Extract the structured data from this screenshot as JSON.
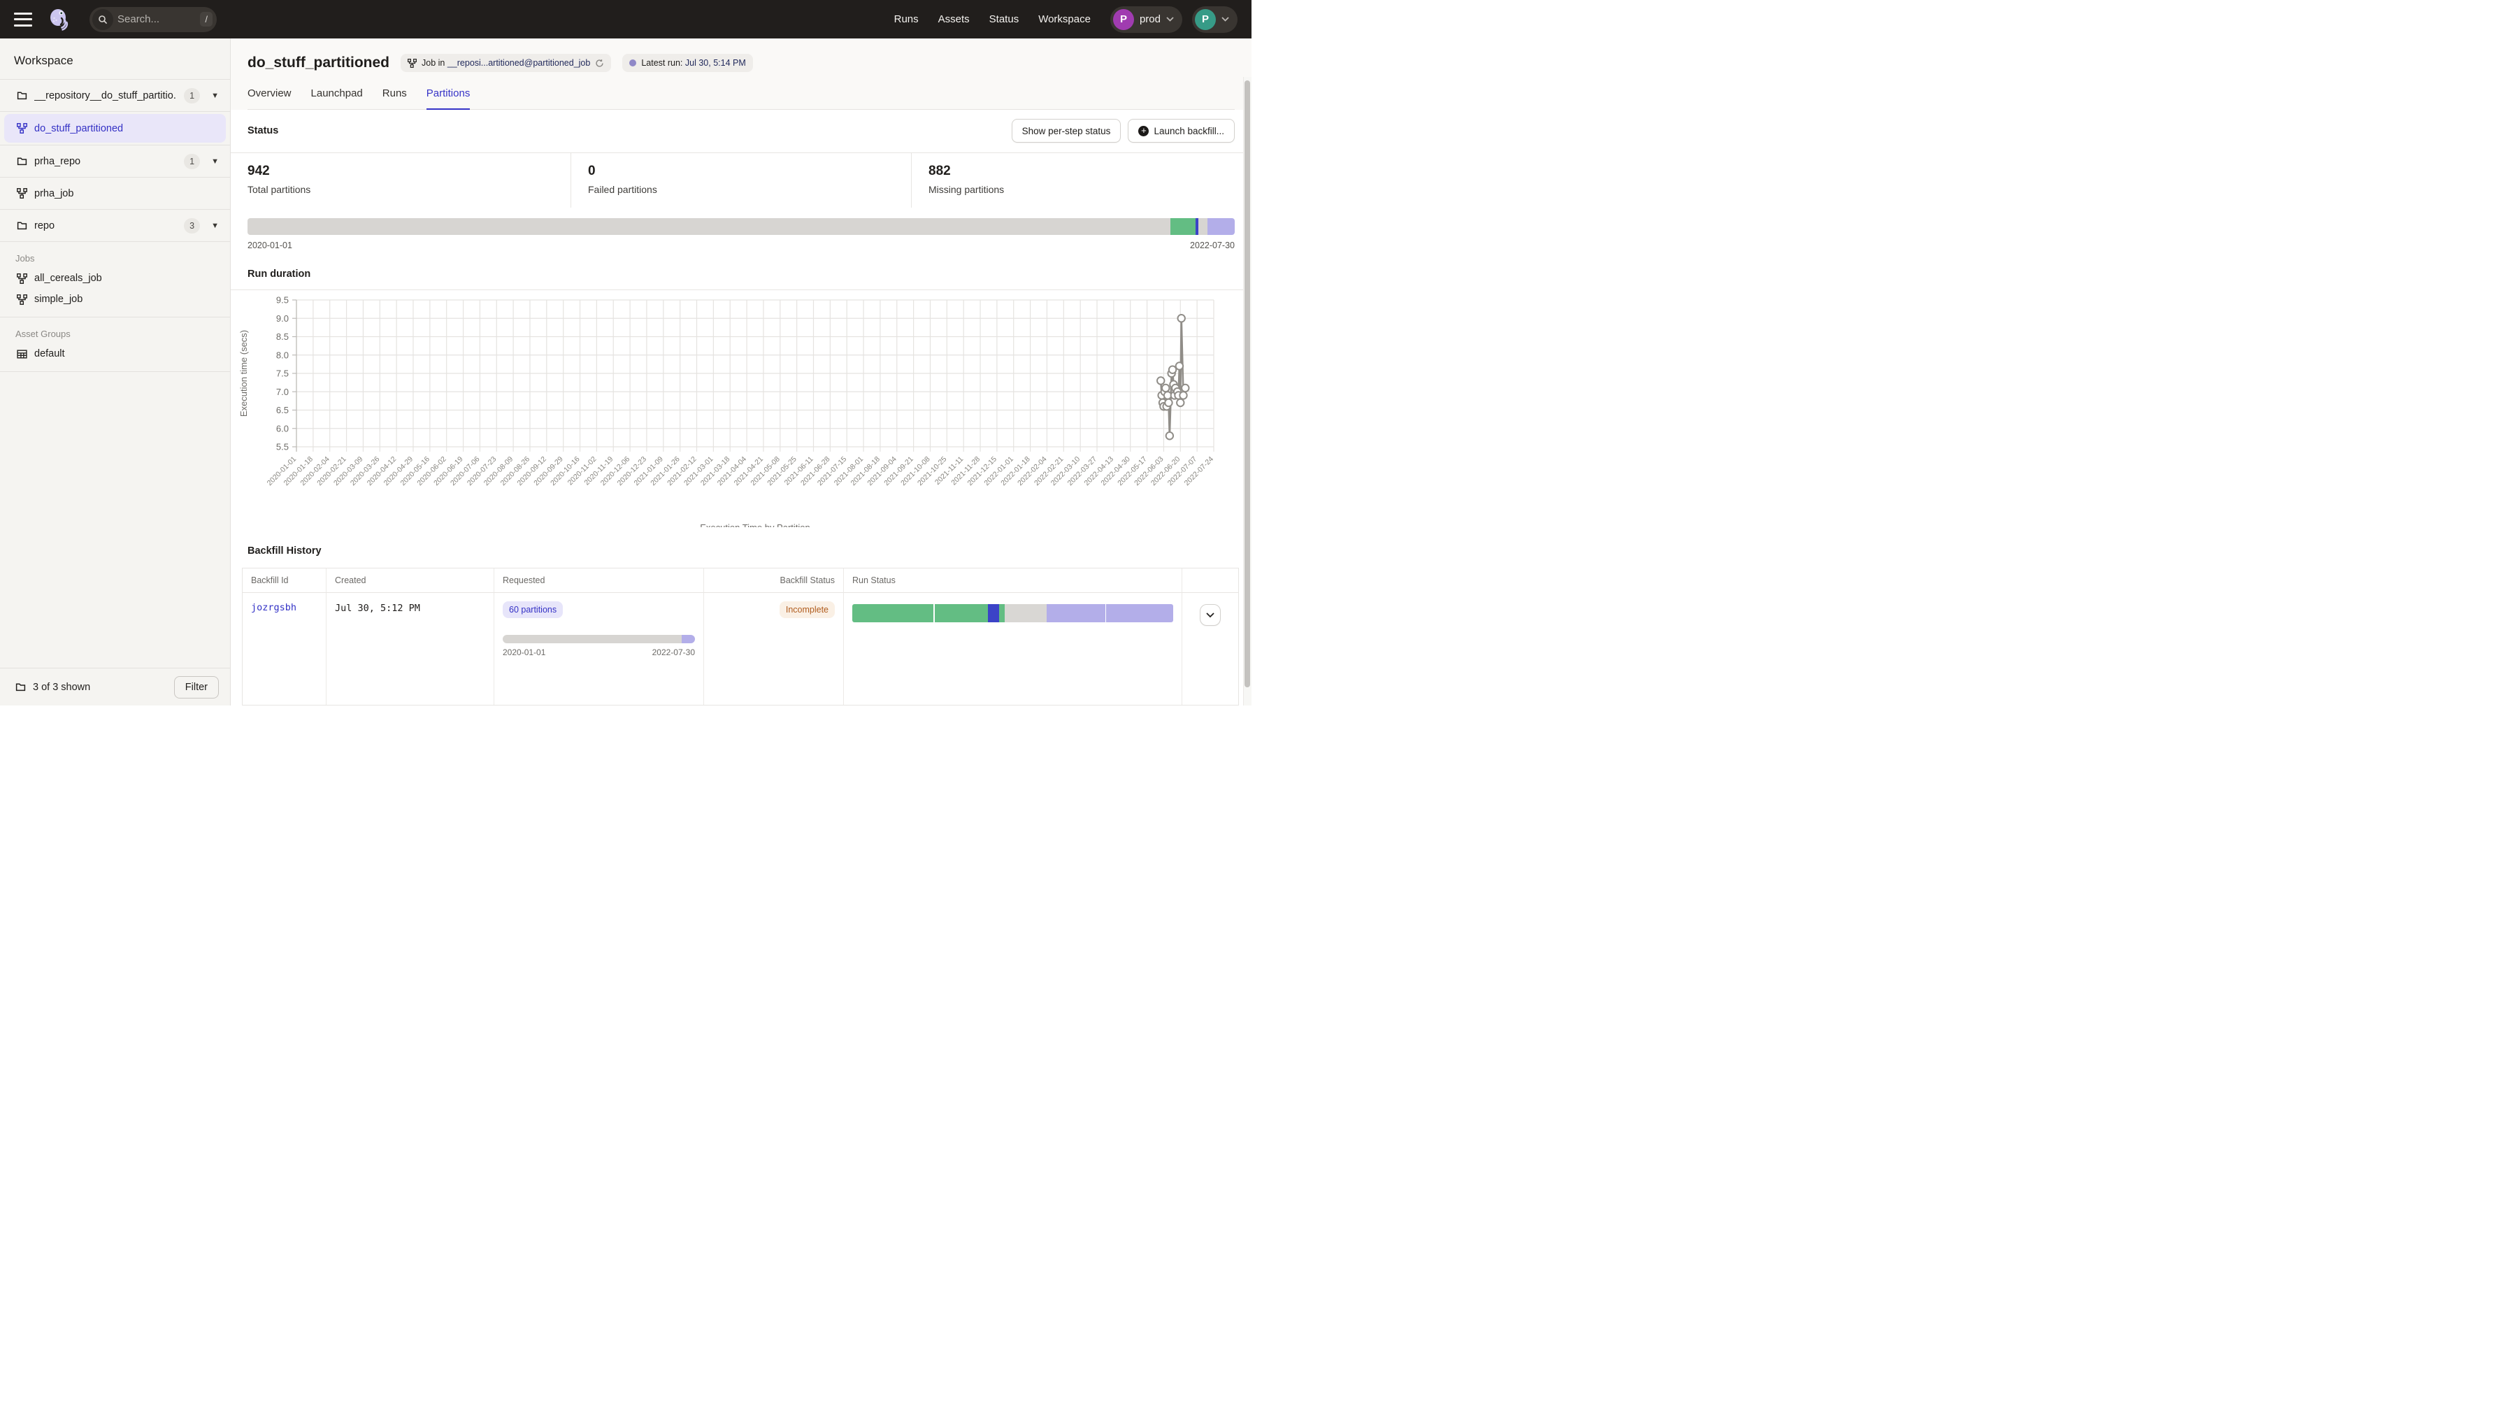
{
  "nav": {
    "search_placeholder": "Search...",
    "search_shortcut": "/",
    "links": [
      "Runs",
      "Assets",
      "Status",
      "Workspace"
    ],
    "deployment": {
      "avatar_initial": "P",
      "label": "prod"
    },
    "user": {
      "avatar_initial": "P"
    }
  },
  "sidebar": {
    "title": "Workspace",
    "rows": [
      {
        "label": "__repository__do_stuff_partitio...",
        "count": "1"
      },
      {
        "label": "do_stuff_partitioned"
      },
      {
        "label": "prha_repo",
        "count": "1"
      },
      {
        "label": "prha_job"
      },
      {
        "label": "repo",
        "count": "3"
      }
    ],
    "jobs_label": "Jobs",
    "jobs": [
      "all_cereals_job",
      "simple_job"
    ],
    "asset_groups_label": "Asset Groups",
    "asset_groups": [
      "default"
    ],
    "footer": {
      "shown": "3 of 3 shown",
      "filter_label": "Filter"
    }
  },
  "header": {
    "title": "do_stuff_partitioned",
    "job_tag": {
      "prefix": "Job in ",
      "link": "__reposi...artitioned@partitioned_job"
    },
    "latest_run": {
      "prefix": "Latest run: ",
      "link": "Jul 30, 5:14 PM"
    }
  },
  "tabs": [
    {
      "label": "Overview"
    },
    {
      "label": "Launchpad"
    },
    {
      "label": "Runs"
    },
    {
      "label": "Partitions",
      "active": true
    }
  ],
  "status_section": {
    "heading": "Status",
    "buttons": [
      "Show per-step status",
      "Launch backfill..."
    ],
    "stats": [
      {
        "value": "942",
        "label": "Total partitions"
      },
      {
        "value": "0",
        "label": "Failed partitions"
      },
      {
        "value": "882",
        "label": "Missing partitions"
      }
    ],
    "partition_bar": {
      "start_label": "2020-01-01",
      "end_label": "2022-07-30",
      "segments": [
        {
          "color": "#d7d5d2",
          "width": 93.45
        },
        {
          "color": "#63bd83",
          "width": 2.55
        },
        {
          "color": "#3c43c7",
          "width": 0.35
        },
        {
          "color": "#d7d5d2",
          "width": 0.9
        },
        {
          "color": "#b3aee9",
          "width": 2.75
        }
      ]
    }
  },
  "run_duration": {
    "heading": "Run duration"
  },
  "chart_data": {
    "type": "line",
    "title": "",
    "xlabel": "Execution Time by Partition",
    "ylabel": "Execution time (secs)",
    "ylim": [
      5.5,
      9.5
    ],
    "yticks": [
      5.5,
      6.0,
      6.5,
      7.0,
      7.5,
      8.0,
      8.5,
      9.0,
      9.5
    ],
    "grid": true,
    "legend": false,
    "line_color": "#908d88",
    "marker": "open-circle",
    "tick_interval_days": 17,
    "xticks": [
      "2020-01-01",
      "2020-01-18",
      "2020-02-04",
      "2020-02-21",
      "2020-03-09",
      "2020-03-26",
      "2020-04-12",
      "2020-04-29",
      "2020-05-16",
      "2020-06-02",
      "2020-06-19",
      "2020-07-06",
      "2020-07-23",
      "2020-08-09",
      "2020-08-26",
      "2020-09-12",
      "2020-09-29",
      "2020-10-16",
      "2020-11-02",
      "2020-11-19",
      "2020-12-06",
      "2020-12-23",
      "2021-01-09",
      "2021-01-26",
      "2021-02-12",
      "2021-03-01",
      "2021-03-18",
      "2021-04-04",
      "2021-04-21",
      "2021-05-08",
      "2021-05-25",
      "2021-06-11",
      "2021-06-28",
      "2021-07-15",
      "2021-08-01",
      "2021-08-18",
      "2021-09-04",
      "2021-09-21",
      "2021-10-08",
      "2021-10-25",
      "2021-11-11",
      "2021-11-28",
      "2021-12-15",
      "2022-01-01",
      "2022-01-18",
      "2022-02-04",
      "2022-02-21",
      "2022-03-10",
      "2022-03-27",
      "2022-04-13",
      "2022-04-30",
      "2022-05-17",
      "2022-06-03",
      "2022-06-20",
      "2022-07-07",
      "2022-07-24"
    ],
    "series": [
      {
        "name": "Execution time (secs)",
        "points": [
          [
            "2022-05-31",
            7.3
          ],
          [
            "2022-06-01",
            6.9
          ],
          [
            "2022-06-02",
            6.7
          ],
          [
            "2022-06-03",
            6.6
          ],
          [
            "2022-06-04",
            7.0
          ],
          [
            "2022-06-05",
            7.1
          ],
          [
            "2022-06-06",
            6.6
          ],
          [
            "2022-06-07",
            6.9
          ],
          [
            "2022-06-08",
            6.7
          ],
          [
            "2022-06-09",
            5.8
          ],
          [
            "2022-06-11",
            7.5
          ],
          [
            "2022-06-12",
            7.6
          ],
          [
            "2022-06-13",
            7.2
          ],
          [
            "2022-06-14",
            6.9
          ],
          [
            "2022-06-15",
            7.1
          ],
          [
            "2022-06-17",
            7.0
          ],
          [
            "2022-06-18",
            6.9
          ],
          [
            "2022-06-19",
            7.7
          ],
          [
            "2022-06-20",
            6.7
          ],
          [
            "2022-06-21",
            9.0
          ],
          [
            "2022-06-23",
            6.9
          ],
          [
            "2022-06-25",
            7.1
          ]
        ]
      }
    ]
  },
  "backfill_history": {
    "heading": "Backfill History",
    "columns": [
      "Backfill Id",
      "Created",
      "Requested",
      "Backfill Status",
      "Run Status"
    ],
    "rows": [
      {
        "id": "jozrgsbh",
        "created": "Jul 30, 5:12 PM",
        "requested_badge": "60 partitions",
        "requested_range": [
          "2020-01-01",
          "2022-07-30"
        ],
        "requested_segments": [
          {
            "color": "#d7d5d2",
            "width": 93
          },
          {
            "color": "#b3aee9",
            "width": 7
          }
        ],
        "backfill_status": "Incomplete",
        "run_status_segments": [
          {
            "color": "#63bd83",
            "width": 25.3
          },
          {
            "color": "#ffffff",
            "width": 0.3
          },
          {
            "color": "#63bd83",
            "width": 16.7
          },
          {
            "color": "#3c43c7",
            "width": 3.5
          },
          {
            "color": "#63bd83",
            "width": 1.6
          },
          {
            "color": "#d9d7d4",
            "width": 13.2
          },
          {
            "color": "#b3aee9",
            "width": 18.3
          },
          {
            "color": "#ffffff",
            "width": 0.3
          },
          {
            "color": "#b3aee9",
            "width": 20.8
          }
        ]
      }
    ]
  },
  "colors": {
    "accent": "#3633c7",
    "success_green": "#63bd83",
    "queued_lavender": "#b3aee9",
    "started_indigo": "#3c43c7",
    "missing_gray": "#d7d5d2",
    "warning_text": "#b05c1e",
    "warning_bg": "#faf0e5",
    "nav_bg": "#211e1c"
  }
}
